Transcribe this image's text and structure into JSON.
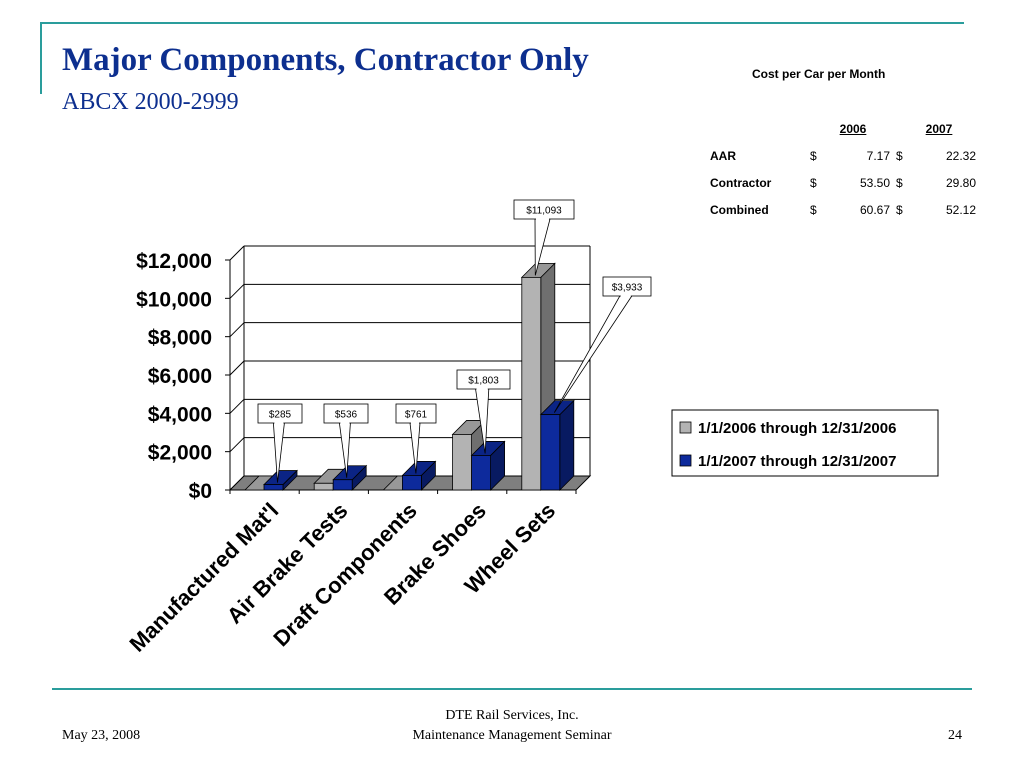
{
  "slide": {
    "title": "Major Components, Contractor Only",
    "subtitle": "ABCX 2000-2999"
  },
  "cost_table": {
    "title": "Cost per Car per Month",
    "headers": [
      "2006",
      "2007"
    ],
    "rows": [
      {
        "label": "AAR",
        "v2006": "7.17",
        "v2007": "22.32"
      },
      {
        "label": "Contractor",
        "v2006": "53.50",
        "v2007": "29.80"
      },
      {
        "label": "Combined",
        "v2006": "60.67",
        "v2007": "52.12"
      }
    ],
    "currency": "$"
  },
  "chart_data": {
    "type": "bar",
    "style": "3d-clustered-column",
    "categories": [
      "Manufactured Mat'l",
      "Air Brake Tests",
      "Draft Components",
      "Brake Shoes",
      "Wheel Sets"
    ],
    "series": [
      {
        "name": "1/1/2006 through 12/31/2006",
        "color": "#b3b3b3",
        "values": [
          0,
          350,
          0,
          2900,
          11093
        ]
      },
      {
        "name": "1/1/2007 through 12/31/2007",
        "color": "#0d2a9c",
        "values": [
          285,
          536,
          761,
          1803,
          3933
        ]
      }
    ],
    "ylim": [
      0,
      12000
    ],
    "yticks": [
      0,
      2000,
      4000,
      6000,
      8000,
      10000,
      12000
    ],
    "ytick_labels": [
      "$0",
      "$2,000",
      "$4,000",
      "$6,000",
      "$8,000",
      "$10,000",
      "$12,000"
    ],
    "grid": true,
    "legend_position": "right",
    "callouts": [
      {
        "text": "$285",
        "series": 1,
        "category": 0
      },
      {
        "text": "$536",
        "series": 1,
        "category": 1
      },
      {
        "text": "$761",
        "series": 1,
        "category": 2
      },
      {
        "text": "$1,803",
        "series": 1,
        "category": 3
      },
      {
        "text": "$11,093",
        "series": 0,
        "category": 4
      },
      {
        "text": "$3,933",
        "series": 1,
        "category": 4
      }
    ]
  },
  "footer": {
    "date": "May 23, 2008",
    "company": "DTE Rail Services, Inc.",
    "seminar": "Maintenance Management Seminar",
    "page": "24"
  }
}
